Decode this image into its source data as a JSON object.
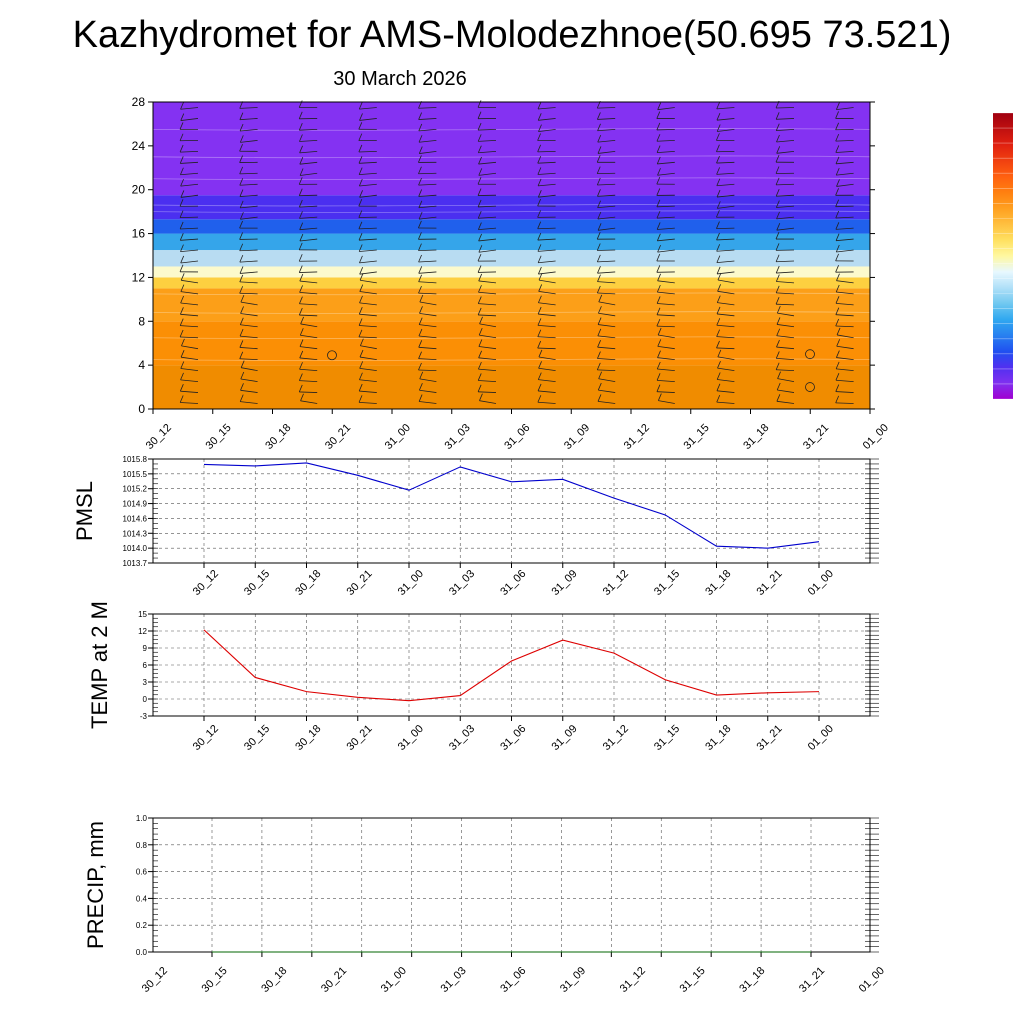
{
  "title": "Kazhydromet for AMS-Molodezhnoe(50.695 73.521)",
  "subtitle": "30 March 2026",
  "colors": {
    "pmsl": "#0000cc",
    "temp": "#dd0000",
    "precip": "#006600"
  },
  "chart_data": [
    {
      "type": "heatmap",
      "name": "vertical-cross-section",
      "x": [
        "30_12",
        "30_15",
        "30_18",
        "30_21",
        "31_00",
        "31_03",
        "31_06",
        "31_09",
        "31_12",
        "31_15",
        "31_18",
        "31_21",
        "01_00"
      ],
      "yticks": [
        0,
        4,
        8,
        12,
        16,
        20,
        24,
        28
      ],
      "ylim": [
        0,
        28
      ],
      "bands": [
        {
          "y0": 0,
          "y1": 4,
          "color": "#f08c00"
        },
        {
          "y0": 4,
          "y1": 8,
          "color": "#fb8f05"
        },
        {
          "y0": 8,
          "y1": 11,
          "color": "#fc9f18"
        },
        {
          "y0": 11,
          "y1": 12,
          "color": "#fdd040"
        },
        {
          "y0": 12,
          "y1": 13,
          "color": "#fcfacc"
        },
        {
          "y0": 13,
          "y1": 14.5,
          "color": "#b8dcf2"
        },
        {
          "y0": 14.5,
          "y1": 16,
          "color": "#35a5ea"
        },
        {
          "y0": 16,
          "y1": 17.3,
          "color": "#2060ec"
        },
        {
          "y0": 17.3,
          "y1": 19.5,
          "color": "#4b2ff0"
        },
        {
          "y0": 19.5,
          "y1": 28,
          "color": "#8432f2"
        }
      ],
      "colorbar": [
        "#a000d0",
        "#8030f0",
        "#5030f0",
        "#2050f0",
        "#2880f0",
        "#30a8f0",
        "#70c8f0",
        "#b0e0f8",
        "#e8f8ff",
        "#fff8a0",
        "#ffe060",
        "#ffc040",
        "#ffa020",
        "#ff8010",
        "#ff6010",
        "#f04010",
        "#e02010",
        "#c01010",
        "#a00010"
      ]
    },
    {
      "type": "line",
      "name": "pmsl",
      "ylabel": "PMSL",
      "x": [
        "30_12",
        "30_15",
        "30_18",
        "30_21",
        "31_00",
        "31_03",
        "31_06",
        "31_09",
        "31_12",
        "31_15",
        "31_18",
        "31_21",
        "01_00"
      ],
      "values": [
        1015.69,
        1015.66,
        1015.72,
        1015.47,
        1015.17,
        1015.64,
        1015.34,
        1015.39,
        1015.01,
        1014.67,
        1014.04,
        1014.0,
        1014.13
      ],
      "yticks": [
        "1013.7",
        "1014.0",
        "1014.3",
        "1014.6",
        "1014.9",
        "1015.2",
        "1015.5",
        "1015.8"
      ],
      "ylim": [
        1013.7,
        1015.8
      ]
    },
    {
      "type": "line",
      "name": "temp",
      "ylabel": "TEMP at 2 M",
      "x": [
        "30_12",
        "30_15",
        "30_18",
        "30_21",
        "31_00",
        "31_03",
        "31_06",
        "31_09",
        "31_12",
        "31_15",
        "31_18",
        "31_21",
        "01_00"
      ],
      "values": [
        12.2,
        3.8,
        1.3,
        0.3,
        -0.3,
        0.6,
        6.7,
        10.4,
        8.1,
        3.4,
        0.7,
        1.1,
        1.3
      ],
      "yticks": [
        "-3",
        "0",
        "3",
        "6",
        "9",
        "12",
        "15"
      ],
      "ylim": [
        -3,
        15
      ]
    },
    {
      "type": "line",
      "name": "precip",
      "ylabel": "PRECIP, mm",
      "x": [
        "30_12",
        "30_15",
        "30_18",
        "30_21",
        "31_00",
        "31_03",
        "31_06",
        "31_09",
        "31_12",
        "31_15",
        "31_18",
        "31_21",
        "01_00"
      ],
      "values": [
        0,
        0,
        0,
        0,
        0,
        0,
        0,
        0,
        0,
        0,
        0,
        0,
        0
      ],
      "yticks": [
        "0.0",
        "0.2",
        "0.4",
        "0.6",
        "0.8",
        "1.0"
      ],
      "ylim": [
        0,
        1
      ]
    }
  ]
}
